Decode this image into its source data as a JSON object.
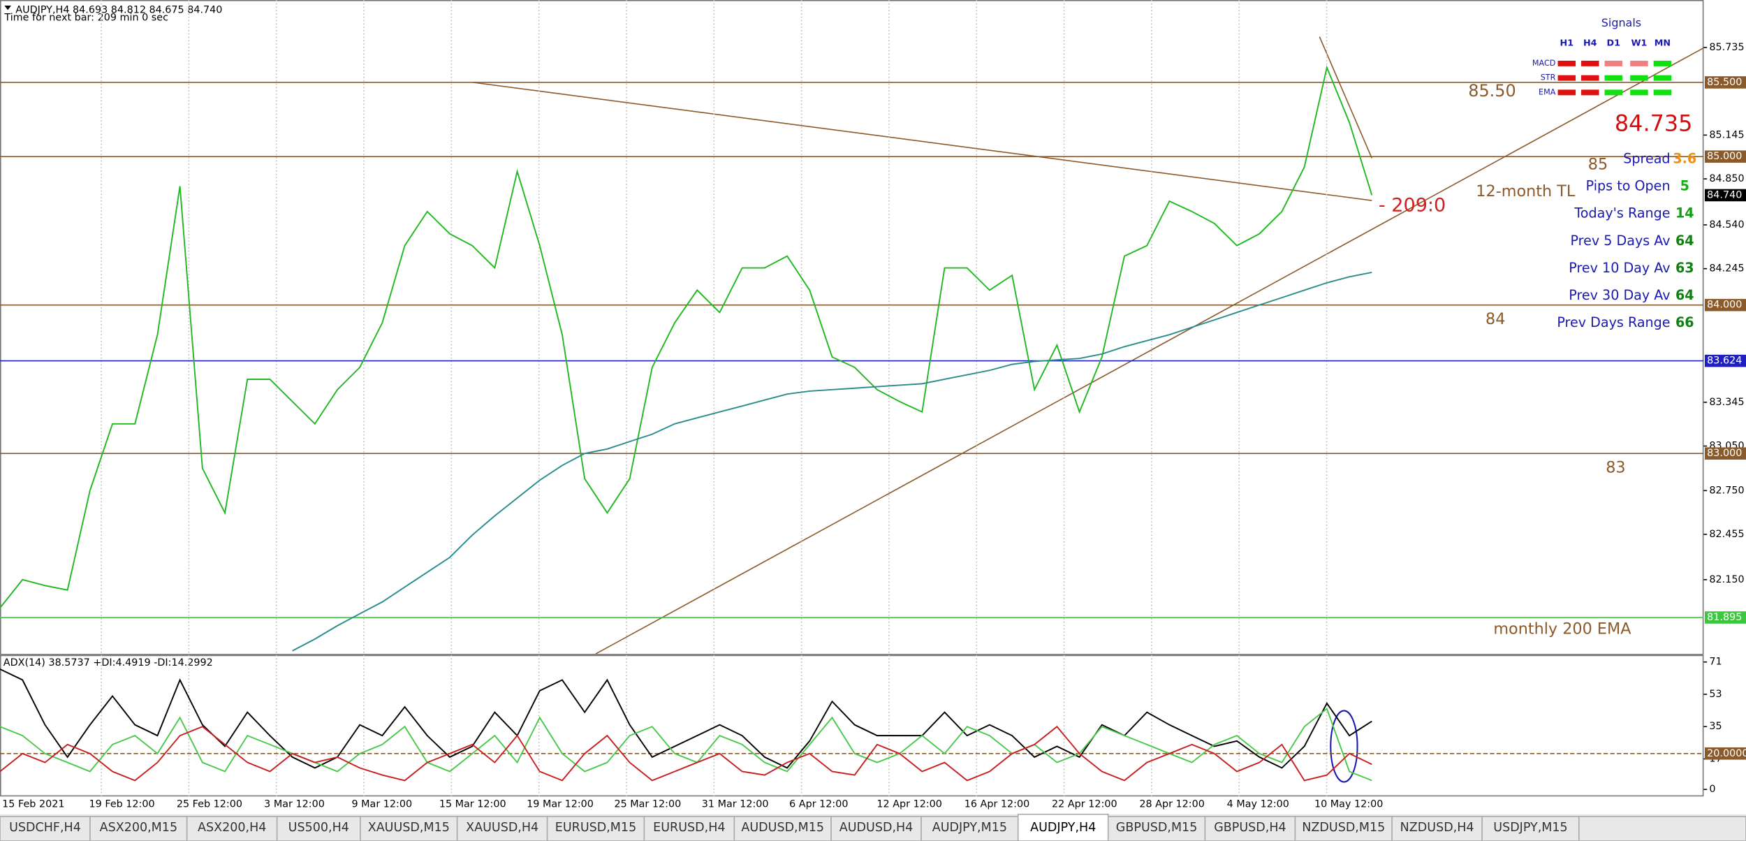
{
  "header": {
    "symbol_line": "AUDJPY,H4  84.693 84.812 84.675 84.740",
    "timer": "Time for next bar: 209 min 0 sec"
  },
  "chart_data": [
    {
      "type": "line",
      "ylim": [
        81.65,
        86.055
      ],
      "yticks": [
        85.735,
        85.145,
        {
          "value": 84.85,
          "label": "84.850"
        },
        {
          "value": 84.54,
          "label": "84.540"
        },
        84.245,
        83.345,
        {
          "value": 83.05,
          "label": "83.050"
        },
        {
          "value": 82.75,
          "label": "82.750"
        },
        82.455,
        {
          "value": 82.15,
          "label": "82.150"
        }
      ],
      "date_labels": [
        "15 Feb 2021",
        "19 Feb 12:00",
        "25 Feb 12:00",
        "3 Mar 12:00",
        "9 Mar 12:00",
        "15 Mar 12:00",
        "19 Mar 12:00",
        "25 Mar 12:00",
        "31 Mar 12:00",
        "6 Apr 12:00",
        "12 Apr 12:00",
        "16 Apr 12:00",
        "22 Apr 12:00",
        "28 Apr 12:00",
        "4 May 12:00",
        "10 May 12:00"
      ],
      "levels": [
        {
          "value": 85.5,
          "label": "85.500",
          "color": "#8b5a2b"
        },
        {
          "value": 85,
          "label": "85.000",
          "color": "#8b5a2b"
        },
        {
          "value": 84,
          "label": "84.000",
          "color": "#8b5a2b"
        },
        {
          "value": 83.624,
          "label": "83.624",
          "color": "#2020c0"
        },
        {
          "value": 83,
          "label": "83.000",
          "color": "#8b5a2b"
        },
        {
          "value": 81.895,
          "label": "81.895",
          "color": "#3cc83c"
        }
      ],
      "current_price": {
        "value": 84.74,
        "label": "84.740",
        "color": "#000000"
      },
      "series": [
        {
          "color": "#22b822",
          "values": [
            81.96,
            82.15,
            82.11,
            82.08,
            82.75,
            83.2,
            83.2,
            83.8,
            84.8,
            82.9,
            82.6,
            83.5,
            83.5,
            83.35,
            83.2,
            83.43,
            83.58,
            83.88,
            84.4,
            84.63,
            84.48,
            84.4,
            84.25,
            84.9,
            84.4,
            83.8,
            82.83,
            82.6,
            82.83,
            83.58,
            83.88,
            84.1,
            83.95,
            84.25,
            84.25,
            84.33,
            84.1,
            83.65,
            83.58,
            83.43,
            83.35,
            83.28,
            84.25,
            84.25,
            84.1,
            84.2,
            83.43,
            83.73,
            83.28,
            83.65,
            84.33,
            84.4,
            84.7,
            84.63,
            84.55,
            84.4,
            84.48,
            84.63,
            84.93,
            85.6,
            85.23,
            84.74
          ]
        },
        {
          "color": "#2a8c8c",
          "values": [
            null,
            null,
            null,
            null,
            null,
            null,
            null,
            null,
            null,
            null,
            null,
            null,
            null,
            81.67,
            81.75,
            81.84,
            81.92,
            82.0,
            82.1,
            82.2,
            82.3,
            82.45,
            82.58,
            82.7,
            82.82,
            82.92,
            83.0,
            83.03,
            83.08,
            83.13,
            83.2,
            83.24,
            83.28,
            83.32,
            83.36,
            83.4,
            83.42,
            83.43,
            83.44,
            83.45,
            83.46,
            83.47,
            83.5,
            83.53,
            83.56,
            83.6,
            83.62,
            83.63,
            83.64,
            83.67,
            83.72,
            83.76,
            83.8,
            83.85,
            83.9,
            83.95,
            84.0,
            84.05,
            84.1,
            84.15,
            84.19,
            84.22
          ]
        }
      ]
    },
    {
      "type": "line",
      "title": "ADX(14) 38.5737 +DI:4.4919 -DI:14.2992",
      "ylim": [
        -3.9,
        74.9
      ],
      "yticks": [
        71,
        53,
        35,
        17,
        0
      ],
      "level": {
        "value": 20,
        "label": "20.0000",
        "color": "#8b5a2b"
      },
      "series": [
        {
          "color": "#000000",
          "values": [
            67,
            61,
            36,
            18,
            36,
            52,
            36,
            30,
            61,
            36,
            24,
            43,
            30,
            18,
            12,
            18,
            36,
            30,
            46,
            30,
            18,
            24,
            43,
            30,
            55,
            61,
            43,
            61,
            36,
            18,
            24,
            30,
            36,
            30,
            18,
            12,
            27,
            49,
            36,
            30,
            30,
            30,
            43,
            30,
            36,
            30,
            18,
            24,
            18,
            36,
            30,
            43,
            36,
            30,
            24,
            27,
            18,
            12,
            24,
            48,
            30,
            38
          ]
        },
        {
          "color": "#4cc84c",
          "values": [
            35,
            30,
            20,
            15,
            10,
            25,
            30,
            20,
            40,
            15,
            10,
            30,
            25,
            20,
            15,
            10,
            20,
            25,
            35,
            15,
            10,
            20,
            30,
            15,
            40,
            20,
            10,
            15,
            30,
            35,
            20,
            15,
            30,
            25,
            15,
            10,
            25,
            40,
            20,
            15,
            20,
            30,
            20,
            35,
            30,
            20,
            25,
            15,
            20,
            35,
            30,
            25,
            20,
            15,
            25,
            30,
            20,
            15,
            35,
            45,
            10,
            5
          ]
        },
        {
          "color": "#c82020",
          "values": [
            10,
            20,
            15,
            25,
            20,
            10,
            5,
            15,
            30,
            35,
            25,
            15,
            10,
            20,
            15,
            18,
            12,
            8,
            5,
            15,
            20,
            25,
            15,
            30,
            10,
            5,
            20,
            30,
            15,
            5,
            10,
            15,
            20,
            10,
            8,
            15,
            20,
            10,
            8,
            25,
            20,
            10,
            15,
            5,
            10,
            20,
            25,
            35,
            20,
            10,
            5,
            15,
            20,
            25,
            20,
            10,
            15,
            25,
            5,
            8,
            20,
            14
          ]
        }
      ]
    }
  ],
  "annotations": [
    {
      "text": "85.50",
      "color": "#8b5a2b"
    },
    {
      "text": "85",
      "color": "#8b5a2b"
    },
    {
      "text": "12-month TL",
      "color": "#8b5a2b"
    },
    {
      "text": "84",
      "color": "#8b5a2b"
    },
    {
      "text": "83",
      "color": "#8b5a2b"
    },
    {
      "text": "monthly 200 EMA",
      "color": "#8b5a2b"
    },
    {
      "text": "- 209:0",
      "color": "#d02020"
    }
  ],
  "info_panel": {
    "signals": {
      "title": "Signals",
      "columns": [
        "H1",
        "H4",
        "D1",
        "W1",
        "MN"
      ],
      "rows": [
        {
          "name": "MACD",
          "colors": [
            "#e01010",
            "#e01010",
            "#f08080",
            "#f08080",
            "#10e010"
          ]
        },
        {
          "name": "STR",
          "colors": [
            "#e01010",
            "#e01010",
            "#10e010",
            "#10e010",
            "#10e010"
          ]
        },
        {
          "name": "EMA",
          "colors": [
            "#e01010",
            "#e01010",
            "#10e010",
            "#10e010",
            "#10e010"
          ]
        }
      ]
    },
    "price": 84.735,
    "stats": [
      {
        "label": "Spread",
        "value": 3.6,
        "color": "#f09010"
      },
      {
        "label": "Pips to Open",
        "value": 5,
        "color": "#10b010"
      },
      {
        "label": "Today's Range",
        "value": 14,
        "color": "#10a010"
      },
      {
        "label": "Prev 5 Days Av",
        "value": 64,
        "color": "#108010"
      },
      {
        "label": "Prev 10 Day Av",
        "value": 63,
        "color": "#108010"
      },
      {
        "label": "Prev 30 Day Av",
        "value": 64,
        "color": "#108010"
      },
      {
        "label": "Prev Days Range",
        "value": 66,
        "color": "#108010"
      }
    ]
  },
  "tabs": {
    "items": [
      "USDCHF,H4",
      "ASX200,M15",
      "ASX200,H4",
      "US500,H4",
      "XAUUSD,M15",
      "XAUUSD,H4",
      "EURUSD,M15",
      "EURUSD,H4",
      "AUDUSD,M15",
      "AUDUSD,H4",
      "AUDJPY,M15",
      "AUDJPY,H4",
      "GBPUSD,M15",
      "GBPUSD,H4",
      "NZDUSD,M15",
      "NZDUSD,H4",
      "USDJPY,M15"
    ],
    "active": 11
  }
}
